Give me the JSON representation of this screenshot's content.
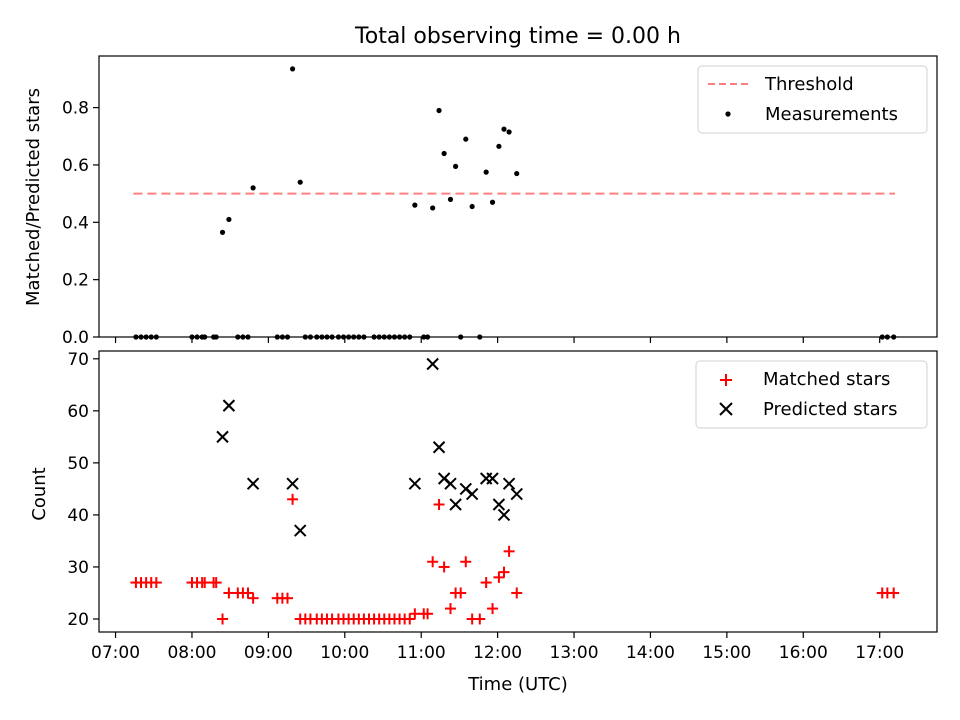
{
  "title": "Total observing time = 0.00 h",
  "colors": {
    "threshold": "#ff7f7f",
    "measurement": "#000000",
    "matched": "#ff0000",
    "predicted": "#000000"
  },
  "chart_data": [
    {
      "type": "scatter",
      "ylabel": "Matched/Predicted stars",
      "ylim": [
        0,
        0.98
      ],
      "yticks": [
        0,
        0.2,
        0.4,
        0.6,
        0.8
      ],
      "ytick_labels": [
        "0.0",
        "0.2",
        "0.4",
        "0.6",
        "0.8"
      ],
      "xlim": [
        "06:47",
        "17:45"
      ],
      "grid": false,
      "legend_position": "top-right",
      "threshold": {
        "name": "Threshold",
        "value": 0.5,
        "x_range": [
          "07:14",
          "17:12"
        ],
        "style": "dashed"
      },
      "series": [
        {
          "name": "Measurements",
          "marker": "dot",
          "points": [
            [
              "07:16",
              0
            ],
            [
              "07:20",
              0
            ],
            [
              "07:24",
              0
            ],
            [
              "07:28",
              0
            ],
            [
              "07:32",
              0
            ],
            [
              "08:00",
              0
            ],
            [
              "08:04",
              0
            ],
            [
              "08:08",
              0
            ],
            [
              "08:10",
              0
            ],
            [
              "08:17",
              0
            ],
            [
              "08:19",
              0
            ],
            [
              "08:24",
              0.365
            ],
            [
              "08:29",
              0.41
            ],
            [
              "08:36",
              0
            ],
            [
              "08:40",
              0
            ],
            [
              "08:44",
              0
            ],
            [
              "08:48",
              0.52
            ],
            [
              "09:07",
              0
            ],
            [
              "09:11",
              0
            ],
            [
              "09:15",
              0
            ],
            [
              "09:19",
              0.935
            ],
            [
              "09:25",
              0.54
            ],
            [
              "09:29",
              0
            ],
            [
              "09:33",
              0
            ],
            [
              "09:38",
              0
            ],
            [
              "09:42",
              0
            ],
            [
              "09:46",
              0
            ],
            [
              "09:50",
              0
            ],
            [
              "09:55",
              0
            ],
            [
              "09:59",
              0
            ],
            [
              "10:03",
              0
            ],
            [
              "10:07",
              0
            ],
            [
              "10:11",
              0
            ],
            [
              "10:15",
              0
            ],
            [
              "10:23",
              0
            ],
            [
              "10:27",
              0
            ],
            [
              "10:31",
              0
            ],
            [
              "10:35",
              0
            ],
            [
              "10:39",
              0
            ],
            [
              "10:43",
              0
            ],
            [
              "10:47",
              0
            ],
            [
              "10:51",
              0
            ],
            [
              "10:55",
              0.46
            ],
            [
              "11:02",
              0
            ],
            [
              "11:05",
              0
            ],
            [
              "11:09",
              0.45
            ],
            [
              "11:14",
              0.79
            ],
            [
              "11:18",
              0.64
            ],
            [
              "11:23",
              0.48
            ],
            [
              "11:27",
              0.595
            ],
            [
              "11:31",
              0
            ],
            [
              "11:35",
              0.69
            ],
            [
              "11:40",
              0.455
            ],
            [
              "11:46",
              0
            ],
            [
              "11:51",
              0.575
            ],
            [
              "11:56",
              0.47
            ],
            [
              "12:01",
              0.665
            ],
            [
              "12:05",
              0.725
            ],
            [
              "12:09",
              0.715
            ],
            [
              "12:15",
              0.57
            ],
            [
              "17:02",
              0
            ],
            [
              "17:06",
              0
            ],
            [
              "17:11",
              0
            ]
          ]
        }
      ]
    },
    {
      "type": "scatter",
      "xlabel": "Time (UTC)",
      "ylabel": "Count",
      "ylim": [
        17.5,
        71.5
      ],
      "yticks": [
        20,
        30,
        40,
        50,
        60,
        70
      ],
      "ytick_labels": [
        "20",
        "30",
        "40",
        "50",
        "60",
        "70"
      ],
      "xticks": [
        "07:00",
        "08:00",
        "09:00",
        "10:00",
        "11:00",
        "12:00",
        "13:00",
        "14:00",
        "15:00",
        "16:00",
        "17:00"
      ],
      "xtick_labels": [
        "07:00",
        "08:00",
        "09:00",
        "10:00",
        "11:00",
        "12:00",
        "13:00",
        "14:00",
        "15:00",
        "16:00",
        "17:00"
      ],
      "xlim": [
        "06:47",
        "17:45"
      ],
      "grid": false,
      "legend_position": "top-right",
      "series": [
        {
          "name": "Matched stars",
          "marker": "plus",
          "points": [
            [
              "07:16",
              27
            ],
            [
              "07:20",
              27
            ],
            [
              "07:24",
              27
            ],
            [
              "07:28",
              27
            ],
            [
              "07:32",
              27
            ],
            [
              "08:00",
              27
            ],
            [
              "08:04",
              27
            ],
            [
              "08:08",
              27
            ],
            [
              "08:10",
              27
            ],
            [
              "08:17",
              27
            ],
            [
              "08:19",
              27
            ],
            [
              "08:24",
              20
            ],
            [
              "08:29",
              25
            ],
            [
              "08:36",
              25
            ],
            [
              "08:40",
              25
            ],
            [
              "08:44",
              25
            ],
            [
              "08:48",
              24
            ],
            [
              "09:07",
              24
            ],
            [
              "09:11",
              24
            ],
            [
              "09:15",
              24
            ],
            [
              "09:19",
              43
            ],
            [
              "09:25",
              20
            ],
            [
              "09:29",
              20
            ],
            [
              "09:33",
              20
            ],
            [
              "09:38",
              20
            ],
            [
              "09:42",
              20
            ],
            [
              "09:46",
              20
            ],
            [
              "09:50",
              20
            ],
            [
              "09:55",
              20
            ],
            [
              "09:59",
              20
            ],
            [
              "10:03",
              20
            ],
            [
              "10:07",
              20
            ],
            [
              "10:11",
              20
            ],
            [
              "10:15",
              20
            ],
            [
              "10:19",
              20
            ],
            [
              "10:23",
              20
            ],
            [
              "10:27",
              20
            ],
            [
              "10:31",
              20
            ],
            [
              "10:35",
              20
            ],
            [
              "10:39",
              20
            ],
            [
              "10:43",
              20
            ],
            [
              "10:47",
              20
            ],
            [
              "10:51",
              20
            ],
            [
              "10:55",
              21
            ],
            [
              "11:02",
              21
            ],
            [
              "11:05",
              21
            ],
            [
              "11:09",
              31
            ],
            [
              "11:14",
              42
            ],
            [
              "11:18",
              30
            ],
            [
              "11:23",
              22
            ],
            [
              "11:27",
              25
            ],
            [
              "11:31",
              25
            ],
            [
              "11:35",
              31
            ],
            [
              "11:40",
              20
            ],
            [
              "11:46",
              20
            ],
            [
              "11:51",
              27
            ],
            [
              "11:56",
              22
            ],
            [
              "12:01",
              28
            ],
            [
              "12:05",
              29
            ],
            [
              "12:09",
              33
            ],
            [
              "12:15",
              25
            ],
            [
              "17:02",
              25
            ],
            [
              "17:06",
              25
            ],
            [
              "17:11",
              25
            ]
          ]
        },
        {
          "name": "Predicted stars",
          "marker": "x",
          "points": [
            [
              "08:24",
              55
            ],
            [
              "08:29",
              61
            ],
            [
              "08:48",
              46
            ],
            [
              "09:19",
              46
            ],
            [
              "09:25",
              37
            ],
            [
              "10:55",
              46
            ],
            [
              "11:09",
              69
            ],
            [
              "11:14",
              53
            ],
            [
              "11:18",
              47
            ],
            [
              "11:23",
              46
            ],
            [
              "11:27",
              42
            ],
            [
              "11:35",
              45
            ],
            [
              "11:40",
              44
            ],
            [
              "11:51",
              47
            ],
            [
              "11:56",
              47
            ],
            [
              "12:01",
              42
            ],
            [
              "12:05",
              40
            ],
            [
              "12:09",
              46
            ],
            [
              "12:15",
              44
            ]
          ]
        }
      ]
    }
  ]
}
